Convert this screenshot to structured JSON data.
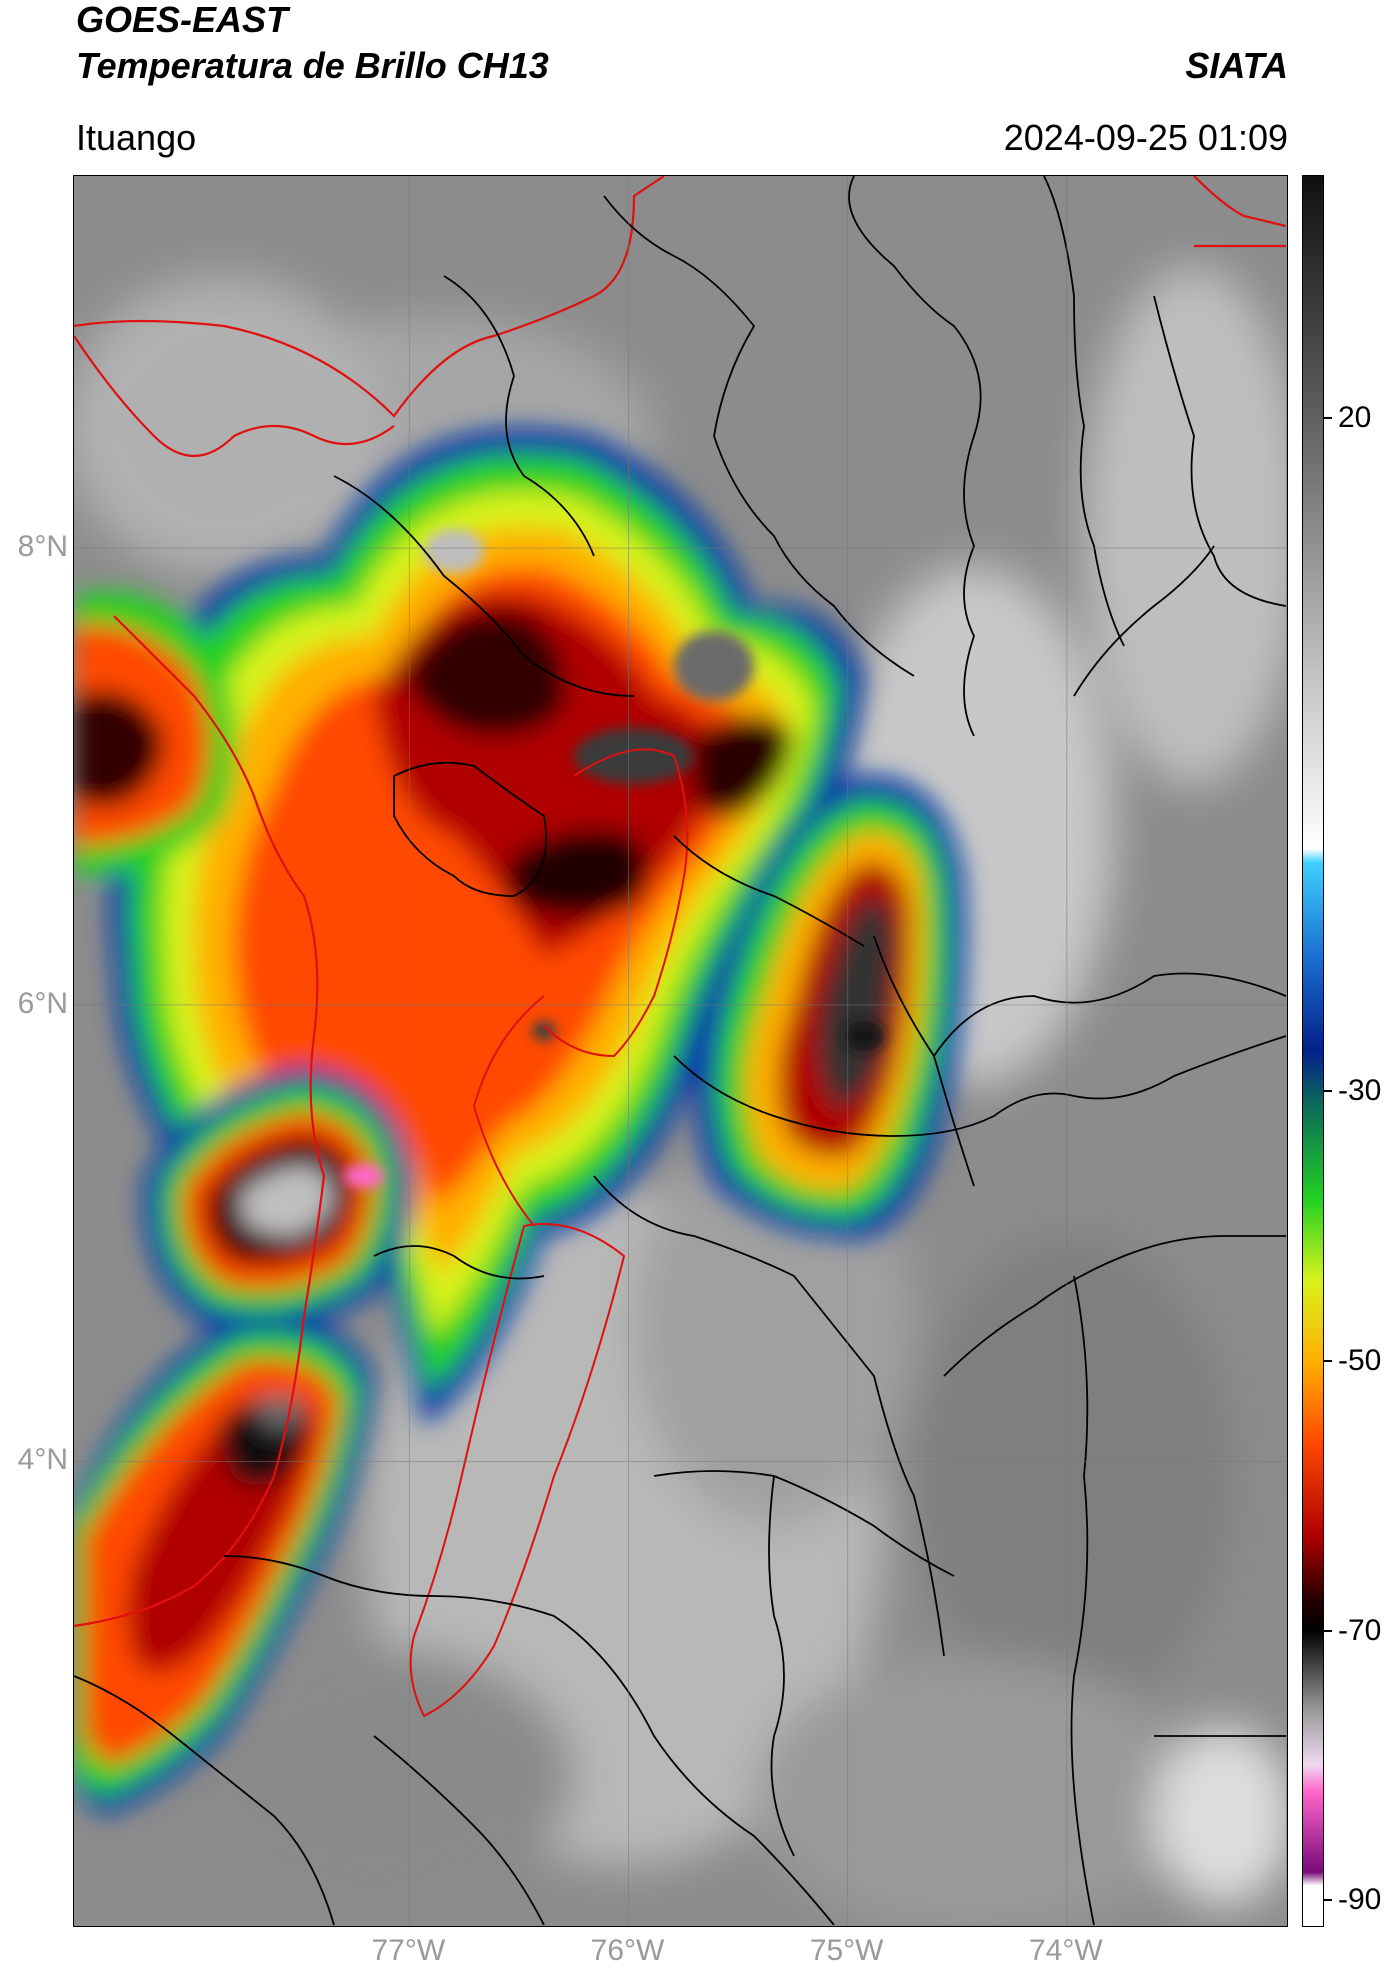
{
  "header": {
    "title_line1": "GOES-EAST",
    "title_line2": "Temperatura de Brillo CH13",
    "organization": "SIATA",
    "location": "Ituango",
    "timestamp": "2024-09-25 01:09"
  },
  "map": {
    "latitude_labels": [
      "8°N",
      "6°N",
      "4°N"
    ],
    "longitude_labels": [
      "77°W",
      "76°W",
      "75°W",
      "74°W"
    ],
    "latitudes": [
      8,
      6,
      4
    ],
    "longitudes": [
      -77,
      -76,
      -75,
      -74
    ],
    "extent": {
      "lon_min": -78.53,
      "lon_max": -73.0,
      "lat_min": 1.97,
      "lat_max": 9.63
    }
  },
  "colorbar": {
    "tick_labels": [
      "20",
      "-30",
      "-50",
      "-70",
      "-90"
    ],
    "tick_values": [
      20,
      -30,
      -50,
      -70,
      -90
    ],
    "range": [
      -92,
      38
    ],
    "stops": [
      {
        "value": 38,
        "color": "#101010"
      },
      {
        "value": 20,
        "color": "#606060"
      },
      {
        "value": 0,
        "color": "#c8c8c8"
      },
      {
        "value": -12,
        "color": "#ffffff"
      },
      {
        "value": -13,
        "color": "#3fd0ff"
      },
      {
        "value": -20,
        "color": "#1a6fd0"
      },
      {
        "value": -27,
        "color": "#04208a"
      },
      {
        "value": -31,
        "color": "#0c6a5a"
      },
      {
        "value": -38,
        "color": "#22d022"
      },
      {
        "value": -44,
        "color": "#d7f21b"
      },
      {
        "value": -50,
        "color": "#ffb000"
      },
      {
        "value": -56,
        "color": "#ff4a00"
      },
      {
        "value": -63,
        "color": "#b00000"
      },
      {
        "value": -68,
        "color": "#200000"
      },
      {
        "value": -70,
        "color": "#000000"
      },
      {
        "value": -76,
        "color": "#9a9a9a"
      },
      {
        "value": -80,
        "color": "#f0d8f0"
      },
      {
        "value": -82,
        "color": "#ff66cc"
      },
      {
        "value": -88,
        "color": "#7a0a7a"
      },
      {
        "value": -89,
        "color": "#ffffff"
      },
      {
        "value": -92,
        "color": "#ffffff"
      }
    ]
  }
}
